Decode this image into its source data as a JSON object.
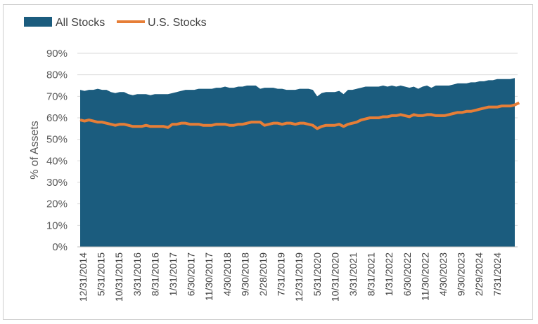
{
  "chart_data": {
    "type": "area",
    "ylabel": "% of Assets",
    "ylim": [
      0,
      90
    ],
    "y_ticks": [
      "0%",
      "10%",
      "20%",
      "30%",
      "40%",
      "50%",
      "60%",
      "70%",
      "80%",
      "90%"
    ],
    "x_tick_labels": [
      "12/31/2014",
      "5/31/2015",
      "10/31/2015",
      "3/31/2016",
      "8/31/2016",
      "1/31/2017",
      "6/30/2017",
      "11/30/2017",
      "4/30/2018",
      "9/30/2018",
      "2/28/2019",
      "7/31/2019",
      "12/31/2019",
      "5/31/2020",
      "10/31/2020",
      "3/31/2021",
      "8/31/2021",
      "1/31/2022",
      "6/30/2022",
      "11/30/2022",
      "4/30/2023",
      "9/30/2023",
      "2/29/2024",
      "7/31/2024"
    ],
    "grid": true,
    "legend_position": "top-left",
    "series": [
      {
        "name": "All Stocks",
        "color": "#1b5c7e",
        "style": "area",
        "values": [
          73,
          72.5,
          73,
          73,
          73.5,
          73,
          73,
          72,
          71.5,
          72,
          72,
          71,
          70.5,
          71,
          71,
          71,
          70.5,
          71,
          71,
          71,
          71,
          71.5,
          72,
          72.5,
          73,
          73,
          73,
          73.5,
          73.5,
          73.5,
          73.5,
          74,
          74,
          74.5,
          74,
          74,
          74.5,
          74.5,
          75,
          75,
          75,
          73.5,
          74,
          74,
          74,
          73.5,
          73.5,
          73,
          73,
          73,
          73.5,
          73.5,
          73.5,
          73,
          70,
          71.5,
          72,
          72,
          72,
          72.5,
          71,
          73,
          73,
          73.5,
          74,
          74.5,
          74.5,
          74.5,
          74.5,
          75,
          74.5,
          75,
          74.5,
          75,
          74.5,
          74,
          74.5,
          73.5,
          74.5,
          75,
          74,
          75,
          75,
          75,
          75,
          75.5,
          76,
          76,
          76,
          76.5,
          76.5,
          77,
          77,
          77.5,
          77.5,
          78,
          78,
          78,
          78,
          78.5
        ]
      },
      {
        "name": "U.S. Stocks",
        "color": "#e67e37",
        "style": "line",
        "values": [
          59,
          58.5,
          59,
          58.5,
          58,
          58,
          57.5,
          57,
          56.5,
          57,
          57,
          56.5,
          56,
          56,
          56,
          56.5,
          56,
          56,
          56,
          56,
          55.5,
          57,
          57,
          57.5,
          57.5,
          57,
          57,
          57,
          56.5,
          56.5,
          56.5,
          57,
          57,
          57,
          56.5,
          56.5,
          57,
          57,
          57.5,
          58,
          58,
          58,
          56.5,
          57,
          57.5,
          57.5,
          57,
          57.5,
          57.5,
          57,
          57.5,
          57.5,
          57,
          56.5,
          55,
          56,
          56.5,
          56.5,
          56.5,
          57,
          56,
          57,
          57.5,
          58,
          59,
          59.5,
          60,
          60,
          60,
          60.5,
          60.5,
          61,
          61,
          61.5,
          61,
          60.5,
          61.5,
          61,
          61,
          61.5,
          61.5,
          61,
          61,
          61,
          61.5,
          62,
          62.5,
          62.5,
          63,
          63,
          63.5,
          64,
          64.5,
          65,
          65,
          65,
          65.5,
          65.5,
          65.5,
          66,
          67
        ]
      }
    ]
  }
}
